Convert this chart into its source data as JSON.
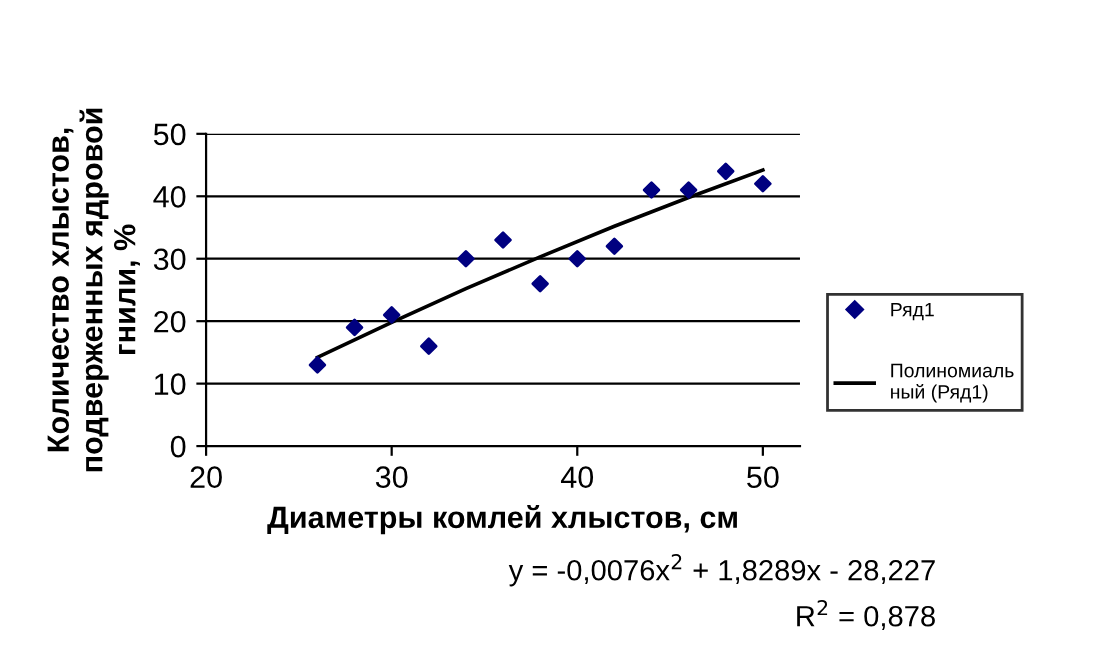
{
  "chart_data": {
    "type": "scatter",
    "xlabel": "Диаметры комлей хлыстов, см",
    "ylabel": "Количество хлыстов,\nподверженных ядровой\nгнили, %",
    "x": [
      26,
      28,
      30,
      32,
      34,
      36,
      38,
      40,
      42,
      44,
      46,
      48,
      50
    ],
    "series": [
      {
        "name": "Ряд1",
        "color": "#000080",
        "marker": "diamond",
        "values": [
          13,
          19,
          21,
          16,
          30,
          33,
          26,
          30,
          32,
          41,
          41,
          44,
          42
        ]
      },
      {
        "name": "Полиномиаль\nный (Ряд1)",
        "type": "line",
        "color": "#000000",
        "marker": "none",
        "x": [
          26,
          30,
          34,
          38,
          42,
          46,
          50
        ],
        "values": [
          14.2,
          19.8,
          25.2,
          30.3,
          35.2,
          39.8,
          44.2
        ]
      }
    ],
    "xlim": [
      20,
      52
    ],
    "xticks": [
      20,
      30,
      40,
      50
    ],
    "ylim": [
      0,
      50
    ],
    "yticks": [
      0,
      10,
      20,
      30,
      40,
      50
    ],
    "grid": "y",
    "legend": "right",
    "annotations": [
      "y = -0,0076x$^{2}$ + 1,8289x - 28,227",
      "R$^{2}$ = 0,878"
    ]
  }
}
